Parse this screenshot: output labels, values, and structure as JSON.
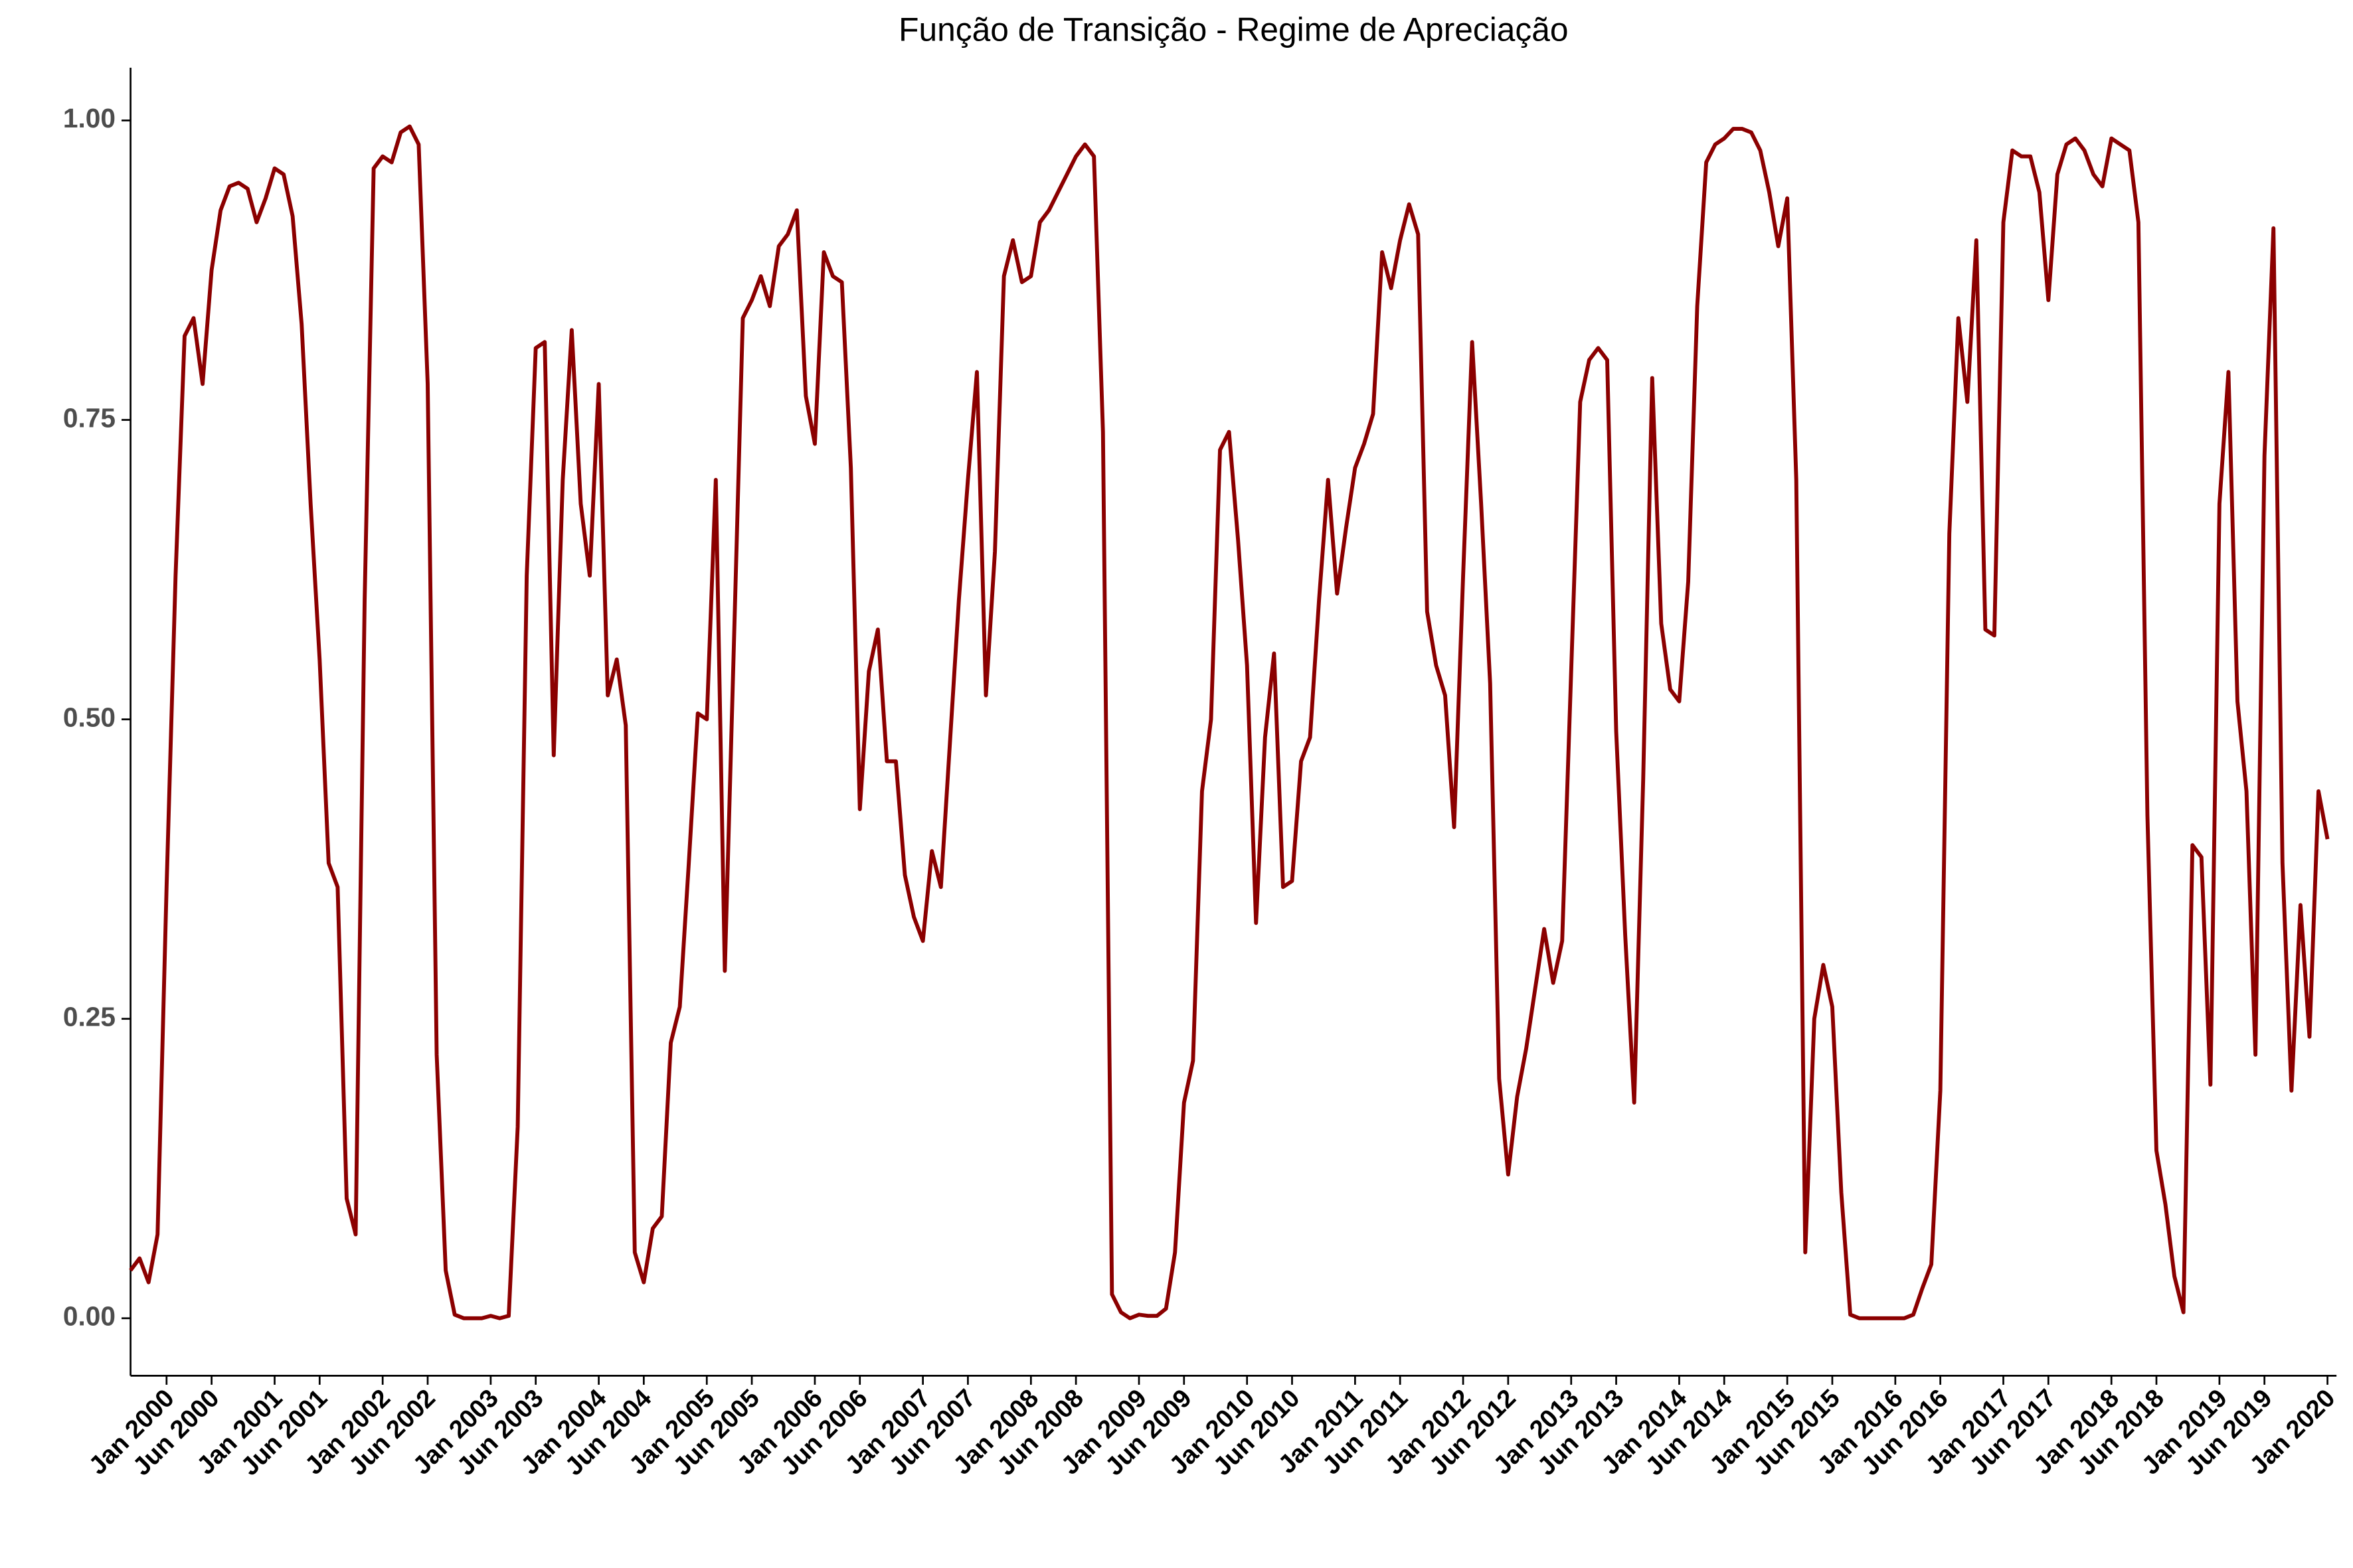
{
  "chart_data": {
    "type": "line",
    "title": "Função de Transição - Regime de Apreciação",
    "color": "#8b0000",
    "x": [
      "1999-09",
      "1999-10",
      "1999-11",
      "1999-12",
      "2000-01",
      "2000-02",
      "2000-03",
      "2000-04",
      "2000-05",
      "2000-06",
      "2000-07",
      "2000-08",
      "2000-09",
      "2000-10",
      "2000-11",
      "2000-12",
      "2001-01",
      "2001-02",
      "2001-03",
      "2001-04",
      "2001-05",
      "2001-06",
      "2001-07",
      "2001-08",
      "2001-09",
      "2001-10",
      "2001-11",
      "2001-12",
      "2002-01",
      "2002-02",
      "2002-03",
      "2002-04",
      "2002-05",
      "2002-06",
      "2002-07",
      "2002-08",
      "2002-09",
      "2002-10",
      "2002-11",
      "2002-12",
      "2003-01",
      "2003-02",
      "2003-03",
      "2003-04",
      "2003-05",
      "2003-06",
      "2003-07",
      "2003-08",
      "2003-09",
      "2003-10",
      "2003-11",
      "2003-12",
      "2004-01",
      "2004-02",
      "2004-03",
      "2004-04",
      "2004-05",
      "2004-06",
      "2004-07",
      "2004-08",
      "2004-09",
      "2004-10",
      "2004-11",
      "2004-12",
      "2005-01",
      "2005-02",
      "2005-03",
      "2005-04",
      "2005-05",
      "2005-06",
      "2005-07",
      "2005-08",
      "2005-09",
      "2005-10",
      "2005-11",
      "2005-12",
      "2006-01",
      "2006-02",
      "2006-03",
      "2006-04",
      "2006-05",
      "2006-06",
      "2006-07",
      "2006-08",
      "2006-09",
      "2006-10",
      "2006-11",
      "2006-12",
      "2007-01",
      "2007-02",
      "2007-03",
      "2007-04",
      "2007-05",
      "2007-06",
      "2007-07",
      "2007-08",
      "2007-09",
      "2007-10",
      "2007-11",
      "2007-12",
      "2008-01",
      "2008-02",
      "2008-03",
      "2008-04",
      "2008-05",
      "2008-06",
      "2008-07",
      "2008-08",
      "2008-09",
      "2008-10",
      "2008-11",
      "2008-12",
      "2009-01",
      "2009-02",
      "2009-03",
      "2009-04",
      "2009-05",
      "2009-06",
      "2009-07",
      "2009-08",
      "2009-09",
      "2009-10",
      "2009-11",
      "2009-12",
      "2010-01",
      "2010-02",
      "2010-03",
      "2010-04",
      "2010-05",
      "2010-06",
      "2010-07",
      "2010-08",
      "2010-09",
      "2010-10",
      "2010-11",
      "2010-12",
      "2011-01",
      "2011-02",
      "2011-03",
      "2011-04",
      "2011-05",
      "2011-06",
      "2011-07",
      "2011-08",
      "2011-09",
      "2011-10",
      "2011-11",
      "2011-12",
      "2012-01",
      "2012-02",
      "2012-03",
      "2012-04",
      "2012-05",
      "2012-06",
      "2012-07",
      "2012-08",
      "2012-09",
      "2012-10",
      "2012-11",
      "2012-12",
      "2013-01",
      "2013-02",
      "2013-03",
      "2013-04",
      "2013-05",
      "2013-06",
      "2013-07",
      "2013-08",
      "2013-09",
      "2013-10",
      "2013-11",
      "2013-12",
      "2014-01",
      "2014-02",
      "2014-03",
      "2014-04",
      "2014-05",
      "2014-06",
      "2014-07",
      "2014-08",
      "2014-09",
      "2014-10",
      "2014-11",
      "2014-12",
      "2015-01",
      "2015-02",
      "2015-03",
      "2015-04",
      "2015-05",
      "2015-06",
      "2015-07",
      "2015-08",
      "2015-09",
      "2015-10",
      "2015-11",
      "2015-12",
      "2016-01",
      "2016-02",
      "2016-03",
      "2016-04",
      "2016-05",
      "2016-06",
      "2016-07",
      "2016-08",
      "2016-09",
      "2016-10",
      "2016-11",
      "2016-12",
      "2017-01",
      "2017-02",
      "2017-03",
      "2017-04",
      "2017-05",
      "2017-06",
      "2017-07",
      "2017-08",
      "2017-09",
      "2017-10",
      "2017-11",
      "2017-12",
      "2018-01",
      "2018-02",
      "2018-03",
      "2018-04",
      "2018-05",
      "2018-06",
      "2018-07",
      "2018-08",
      "2018-09",
      "2018-10",
      "2018-11",
      "2018-12",
      "2019-01",
      "2019-02",
      "2019-03",
      "2019-04",
      "2019-05",
      "2019-06",
      "2019-07",
      "2019-08",
      "2019-09",
      "2019-10",
      "2019-11",
      "2019-12",
      "2020-01"
    ],
    "values": [
      0.04,
      0.05,
      0.03,
      0.07,
      0.36,
      0.62,
      0.82,
      0.835,
      0.78,
      0.875,
      0.925,
      0.945,
      0.948,
      0.943,
      0.915,
      0.935,
      0.96,
      0.955,
      0.92,
      0.83,
      0.68,
      0.55,
      0.38,
      0.36,
      0.1,
      0.07,
      0.6,
      0.96,
      0.97,
      0.965,
      0.99,
      0.995,
      0.98,
      0.78,
      0.22,
      0.04,
      0.003,
      0.0,
      0.0,
      0.0,
      0.002,
      0.0,
      0.002,
      0.16,
      0.62,
      0.81,
      0.815,
      0.47,
      0.7,
      0.825,
      0.68,
      0.62,
      0.78,
      0.52,
      0.55,
      0.495,
      0.055,
      0.03,
      0.075,
      0.085,
      0.23,
      0.26,
      0.38,
      0.505,
      0.5,
      0.7,
      0.29,
      0.56,
      0.835,
      0.85,
      0.87,
      0.845,
      0.895,
      0.905,
      0.925,
      0.77,
      0.73,
      0.89,
      0.87,
      0.865,
      0.71,
      0.425,
      0.54,
      0.575,
      0.465,
      0.465,
      0.37,
      0.335,
      0.315,
      0.39,
      0.36,
      0.48,
      0.6,
      0.7,
      0.79,
      0.52,
      0.64,
      0.87,
      0.9,
      0.865,
      0.87,
      0.915,
      0.925,
      0.94,
      0.955,
      0.97,
      0.98,
      0.97,
      0.74,
      0.02,
      0.005,
      0.0,
      0.003,
      0.002,
      0.002,
      0.008,
      0.055,
      0.18,
      0.215,
      0.44,
      0.5,
      0.725,
      0.74,
      0.65,
      0.545,
      0.33,
      0.485,
      0.555,
      0.36,
      0.365,
      0.465,
      0.485,
      0.6,
      0.7,
      0.605,
      0.66,
      0.71,
      0.73,
      0.755,
      0.89,
      0.86,
      0.9,
      0.93,
      0.905,
      0.59,
      0.545,
      0.52,
      0.41,
      0.62,
      0.815,
      0.68,
      0.53,
      0.2,
      0.12,
      0.185,
      0.225,
      0.275,
      0.325,
      0.28,
      0.315,
      0.54,
      0.765,
      0.8,
      0.81,
      0.8,
      0.49,
      0.32,
      0.18,
      0.45,
      0.785,
      0.58,
      0.525,
      0.515,
      0.615,
      0.845,
      0.965,
      0.98,
      0.985,
      0.993,
      0.993,
      0.99,
      0.975,
      0.94,
      0.895,
      0.935,
      0.7,
      0.055,
      0.25,
      0.295,
      0.26,
      0.105,
      0.003,
      0.0,
      0.0,
      0.0,
      0.0,
      0.0,
      0.0,
      0.003,
      0.025,
      0.045,
      0.19,
      0.655,
      0.835,
      0.765,
      0.9,
      0.575,
      0.57,
      0.915,
      0.975,
      0.97,
      0.97,
      0.94,
      0.85,
      0.955,
      0.98,
      0.985,
      0.975,
      0.955,
      0.945,
      0.985,
      0.98,
      0.975,
      0.915,
      0.42,
      0.14,
      0.095,
      0.035,
      0.005,
      0.395,
      0.385,
      0.195,
      0.68,
      0.79,
      0.515,
      0.44,
      0.22,
      0.72,
      0.91,
      0.38,
      0.19,
      0.345,
      0.235,
      0.44,
      0.4
    ],
    "xlim": [
      "1999-09",
      "2020-02"
    ],
    "ylim": [
      -0.048,
      1.044
    ],
    "yticks": [
      {
        "value": 0,
        "label": "0.00"
      },
      {
        "value": 0.25,
        "label": "0.25"
      },
      {
        "value": 0.5,
        "label": "0.50"
      },
      {
        "value": 0.75,
        "label": "0.75"
      },
      {
        "value": 1,
        "label": "1.00"
      }
    ],
    "xticks": [
      {
        "value": "2000-01",
        "label": "Jan 2000"
      },
      {
        "value": "2000-06",
        "label": "Jun 2000"
      },
      {
        "value": "2001-01",
        "label": "Jan 2001"
      },
      {
        "value": "2001-06",
        "label": "Jun 2001"
      },
      {
        "value": "2002-01",
        "label": "Jan 2002"
      },
      {
        "value": "2002-06",
        "label": "Jun 2002"
      },
      {
        "value": "2003-01",
        "label": "Jan 2003"
      },
      {
        "value": "2003-06",
        "label": "Jun 2003"
      },
      {
        "value": "2004-01",
        "label": "Jan 2004"
      },
      {
        "value": "2004-06",
        "label": "Jun 2004"
      },
      {
        "value": "2005-01",
        "label": "Jan 2005"
      },
      {
        "value": "2005-06",
        "label": "Jun 2005"
      },
      {
        "value": "2006-01",
        "label": "Jan 2006"
      },
      {
        "value": "2006-06",
        "label": "Jun 2006"
      },
      {
        "value": "2007-01",
        "label": "Jan 2007"
      },
      {
        "value": "2007-06",
        "label": "Jun 2007"
      },
      {
        "value": "2008-01",
        "label": "Jan 2008"
      },
      {
        "value": "2008-06",
        "label": "Jun 2008"
      },
      {
        "value": "2009-01",
        "label": "Jan 2009"
      },
      {
        "value": "2009-06",
        "label": "Jun 2009"
      },
      {
        "value": "2010-01",
        "label": "Jan 2010"
      },
      {
        "value": "2010-06",
        "label": "Jun 2010"
      },
      {
        "value": "2011-01",
        "label": "Jan 2011"
      },
      {
        "value": "2011-06",
        "label": "Jun 2011"
      },
      {
        "value": "2012-01",
        "label": "Jan 2012"
      },
      {
        "value": "2012-06",
        "label": "Jun 2012"
      },
      {
        "value": "2013-01",
        "label": "Jan 2013"
      },
      {
        "value": "2013-06",
        "label": "Jun 2013"
      },
      {
        "value": "2014-01",
        "label": "Jan 2014"
      },
      {
        "value": "2014-06",
        "label": "Jun 2014"
      },
      {
        "value": "2015-01",
        "label": "Jan 2015"
      },
      {
        "value": "2015-06",
        "label": "Jun 2015"
      },
      {
        "value": "2016-01",
        "label": "Jan 2016"
      },
      {
        "value": "2016-06",
        "label": "Jun 2016"
      },
      {
        "value": "2017-01",
        "label": "Jan 2017"
      },
      {
        "value": "2017-06",
        "label": "Jun 2017"
      },
      {
        "value": "2018-01",
        "label": "Jan 2018"
      },
      {
        "value": "2018-06",
        "label": "Jun 2018"
      },
      {
        "value": "2019-01",
        "label": "Jan 2019"
      },
      {
        "value": "2019-06",
        "label": "Jun 2019"
      },
      {
        "value": "2020-01",
        "label": "Jan 2020"
      }
    ],
    "grid": false
  }
}
